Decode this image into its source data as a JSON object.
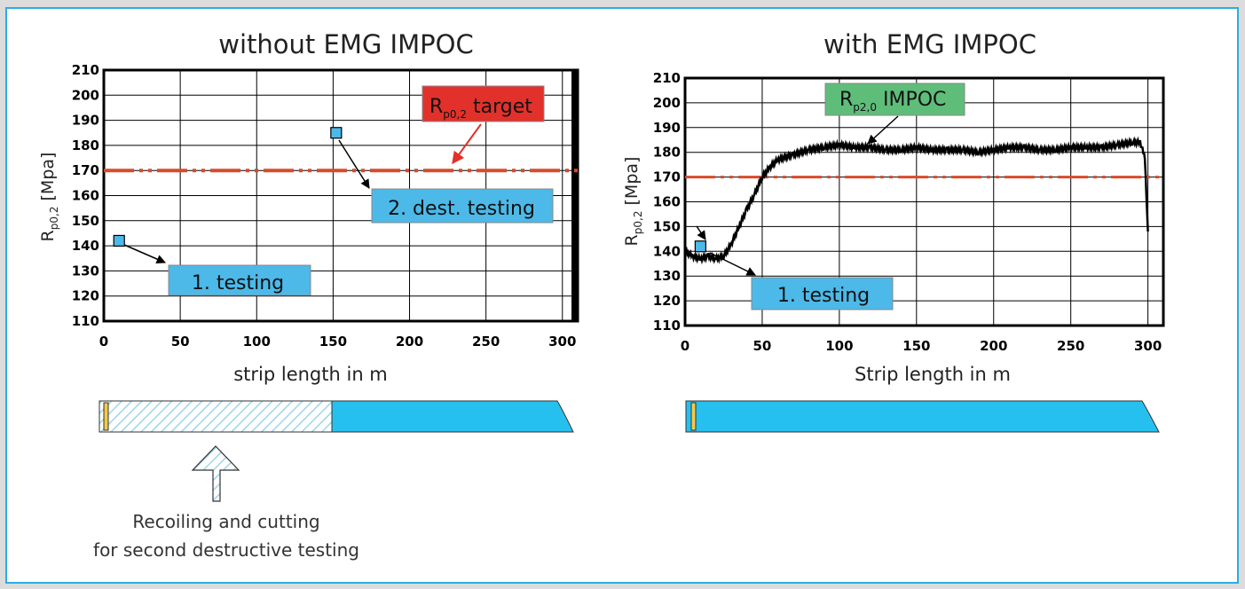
{
  "colors": {
    "frame": "#29aee3",
    "box_blue": "#4cb9e8",
    "box_red": "#e2312b",
    "box_green": "#5fbd7a",
    "target_line": "#d94a2a",
    "strip_fill": "#26c0ef",
    "hatch": "#9fd5e8"
  },
  "left": {
    "title": "without EMG IMPOC",
    "xlabel": "strip length in m",
    "ylabel_main": "R",
    "ylabel_sub": "p0,2",
    "ylabel_unit": " [Mpa]",
    "target_label_main": "R",
    "target_label_sub": "p0,2",
    "target_label_rest": " target",
    "box1_label": "1. testing",
    "box2_label": "2. dest. testing",
    "caption_line1": "Recoiling and cutting",
    "caption_line2": "for second destructive testing"
  },
  "right": {
    "title": "with EMG IMPOC",
    "xlabel": "Strip length in m",
    "ylabel_main": "R",
    "ylabel_sub": "p0,2",
    "ylabel_unit": " [Mpa]",
    "impoc_label_main": "R",
    "impoc_label_sub": "p2,0",
    "impoc_label_rest": " IMPOC",
    "box1_label": "1. testing"
  },
  "chart_data": [
    {
      "type": "scatter",
      "title": "without EMG IMPOC",
      "xlabel": "strip length in m",
      "ylabel": "Rp0,2 [Mpa]",
      "xlim": [
        0,
        310
      ],
      "ylim": [
        110,
        210
      ],
      "x_ticks": [
        0,
        50,
        100,
        150,
        200,
        250,
        300
      ],
      "y_ticks": [
        110,
        120,
        130,
        140,
        150,
        160,
        170,
        180,
        190,
        200,
        210
      ],
      "grid": true,
      "series": [
        {
          "name": "1. testing",
          "x": [
            10
          ],
          "y": [
            142
          ]
        },
        {
          "name": "2. dest. testing",
          "x": [
            152
          ],
          "y": [
            185
          ]
        },
        {
          "name": "Rp0,2 target",
          "x": [
            0,
            310
          ],
          "y": [
            170,
            170
          ]
        }
      ]
    },
    {
      "type": "line",
      "title": "with EMG IMPOC",
      "xlabel": "Strip length in m",
      "ylabel": "Rp0,2 [Mpa]",
      "xlim": [
        0,
        310
      ],
      "ylim": [
        110,
        210
      ],
      "x_ticks": [
        0,
        50,
        100,
        150,
        200,
        250,
        300
      ],
      "y_ticks": [
        110,
        120,
        130,
        140,
        150,
        160,
        170,
        180,
        190,
        200,
        210
      ],
      "grid": true,
      "series": [
        {
          "name": "Rp2,0 IMPOC",
          "x": [
            0,
            5,
            10,
            15,
            20,
            25,
            30,
            35,
            40,
            45,
            50,
            55,
            60,
            70,
            80,
            90,
            100,
            110,
            120,
            130,
            140,
            150,
            160,
            170,
            180,
            190,
            200,
            210,
            220,
            230,
            240,
            250,
            260,
            270,
            280,
            290,
            295,
            298,
            300
          ],
          "y": [
            140,
            138,
            137,
            138,
            137,
            138,
            143,
            150,
            157,
            163,
            170,
            174,
            177,
            179,
            181,
            182,
            183,
            182,
            182,
            181,
            181,
            182,
            181,
            181,
            181,
            180,
            181,
            182,
            182,
            181,
            181,
            182,
            182,
            182,
            183,
            184,
            184,
            178,
            148
          ]
        },
        {
          "name": "1. testing",
          "x": [
            10
          ],
          "y": [
            142
          ]
        },
        {
          "name": "Rp0,2 target",
          "x": [
            0,
            310
          ],
          "y": [
            170,
            170
          ]
        }
      ]
    }
  ]
}
